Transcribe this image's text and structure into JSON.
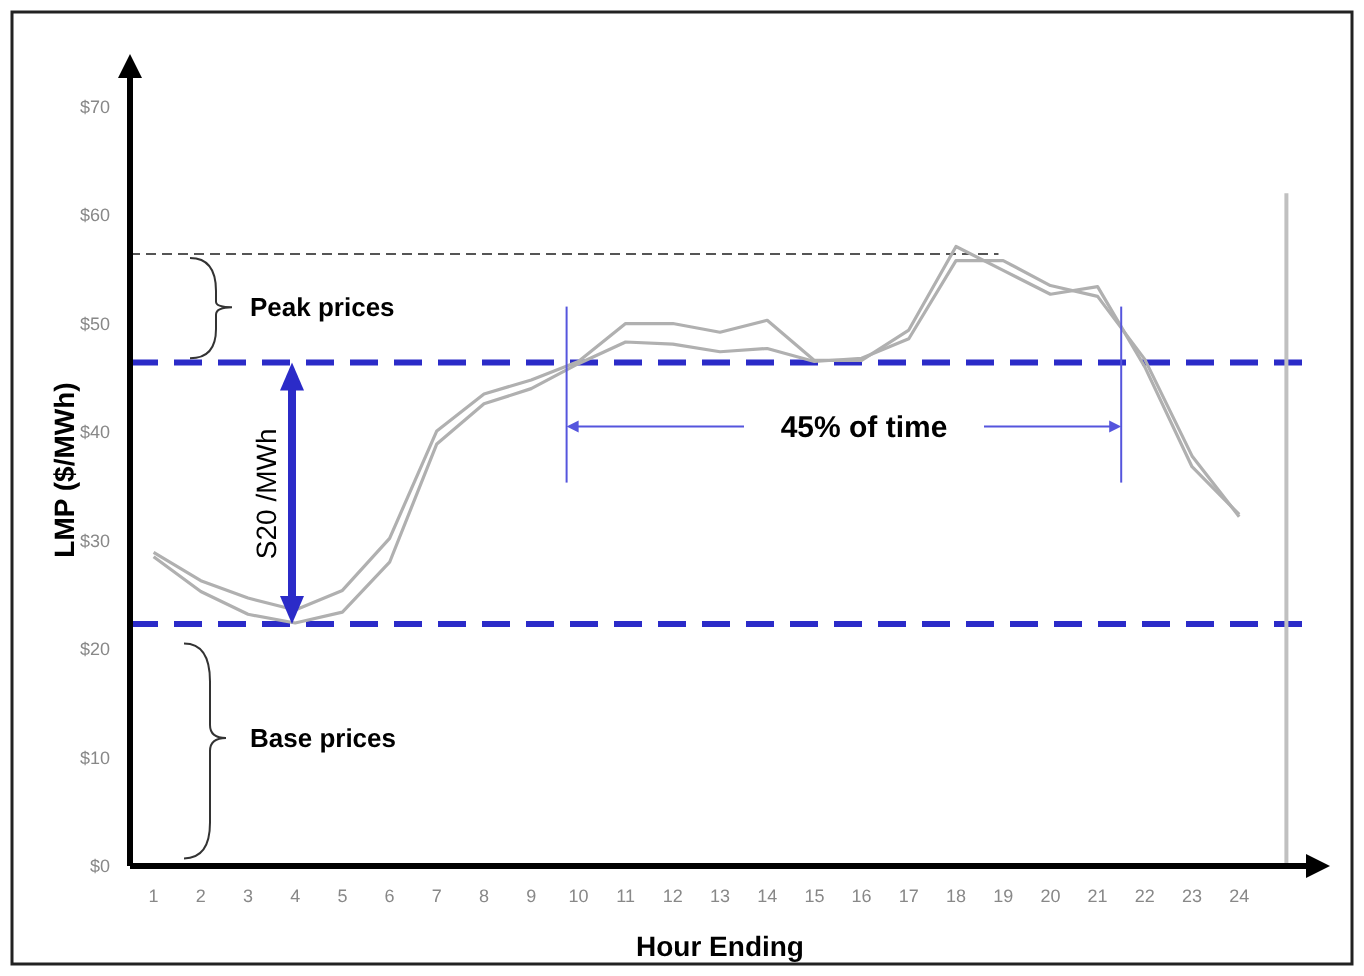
{
  "chart_data": {
    "type": "line",
    "xlabel": "Hour Ending",
    "ylabel": "LMP ($/MWh)",
    "x": [
      1,
      2,
      3,
      4,
      5,
      6,
      7,
      8,
      9,
      10,
      11,
      12,
      13,
      14,
      15,
      16,
      17,
      18,
      19,
      20,
      21,
      22,
      23,
      24
    ],
    "series": [
      {
        "color": "#b0b0b0",
        "values": [
          28.9,
          26.3,
          24.7,
          23.6,
          25.4,
          30.2,
          40.1,
          43.5,
          44.8,
          46.5,
          50,
          50,
          49.2,
          50.3,
          46.6,
          46.6,
          49.4,
          57.1,
          54.9,
          52.7,
          53.4,
          46,
          36.8,
          32.4
        ]
      },
      {
        "color": "#b0b0b0",
        "values": [
          28.5,
          25.3,
          23.2,
          22.4,
          23.4,
          28,
          38.9,
          42.6,
          44,
          46.3,
          48.3,
          48.1,
          47.4,
          47.7,
          46.5,
          46.8,
          48.6,
          55.8,
          55.8,
          53.5,
          52.5,
          46.7,
          37.8,
          32.2
        ]
      }
    ],
    "xlim": [
      0.5,
      25.5
    ],
    "ylim": [
      0,
      73
    ],
    "xticks": [
      1,
      2,
      3,
      4,
      5,
      6,
      7,
      8,
      9,
      10,
      11,
      12,
      13,
      14,
      15,
      16,
      17,
      18,
      19,
      20,
      21,
      22,
      23,
      24
    ],
    "yticks": [
      {
        "value": 0,
        "label": "$0"
      },
      {
        "value": 10,
        "label": "$10"
      },
      {
        "value": 20,
        "label": "$20"
      },
      {
        "value": 30,
        "label": "$30"
      },
      {
        "value": 40,
        "label": "$40"
      },
      {
        "value": 50,
        "label": "$50"
      },
      {
        "value": 60,
        "label": "$60"
      },
      {
        "value": 70,
        "label": "$70"
      }
    ],
    "ref_lines": [
      {
        "axis": "y",
        "value": 46.4,
        "color": "#2b2bc8",
        "line_style": "dashed"
      },
      {
        "axis": "y",
        "value": 22.3,
        "color": "#2b2bc8",
        "line_style": "dashed"
      },
      {
        "axis": "y",
        "value": 56.4,
        "color": "#555555",
        "line_style": "dashed"
      },
      {
        "axis": "x",
        "value": 25,
        "color": "#c0c0c0",
        "line_style": "solid"
      }
    ],
    "annotations": [
      "Peak prices",
      "Base prices",
      "S20 /MWh",
      "45% of time"
    ],
    "marker": "none",
    "line_style": "solid"
  }
}
